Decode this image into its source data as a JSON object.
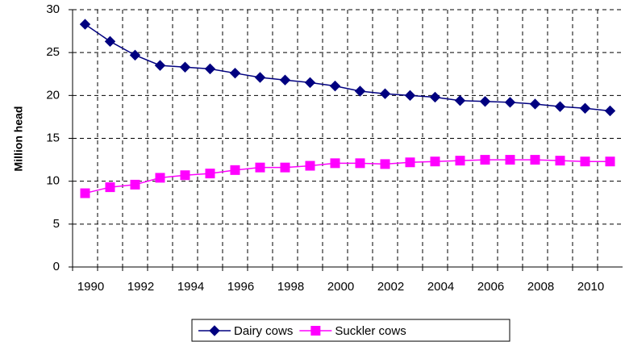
{
  "chart_data": {
    "type": "line",
    "y_label": "Million head",
    "categories": [
      1990,
      null,
      1992,
      null,
      1994,
      null,
      1996,
      null,
      1998,
      null,
      2000,
      null,
      2002,
      null,
      2004,
      null,
      2006,
      null,
      2008,
      null,
      2010,
      null
    ],
    "series": [
      {
        "name": "Dairy cows",
        "color": "#000080",
        "marker": "diamond",
        "values": [
          28.3,
          26.3,
          24.7,
          23.5,
          23.3,
          23.1,
          22.6,
          22.1,
          21.8,
          21.5,
          21.1,
          20.5,
          20.2,
          20.0,
          19.8,
          19.4,
          19.3,
          19.2,
          19.0,
          18.7,
          18.5,
          18.2
        ]
      },
      {
        "name": "Suckler cows",
        "color": "#ff00ff",
        "marker": "square",
        "values": [
          8.6,
          9.3,
          9.6,
          10.4,
          10.7,
          10.9,
          11.3,
          11.6,
          11.6,
          11.8,
          12.1,
          12.1,
          12.0,
          12.2,
          12.3,
          12.4,
          12.5,
          12.5,
          12.5,
          12.4,
          12.3,
          12.3
        ]
      }
    ],
    "ylim": [
      0,
      30
    ],
    "yticks": [
      0,
      5,
      10,
      15,
      20,
      25,
      30
    ],
    "grid": true,
    "legend": "bottom"
  }
}
